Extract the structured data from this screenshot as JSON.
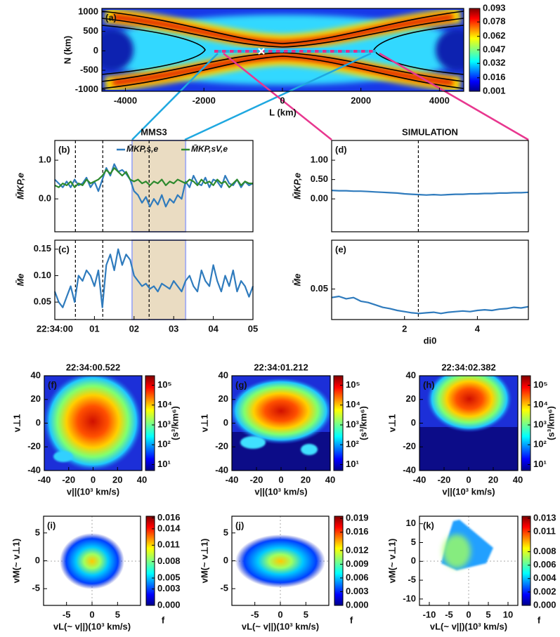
{
  "chart_data": [
    {
      "type": "heatmap",
      "annotation": "(a)",
      "xlabel": "L (km)",
      "ylabel": "N (km)",
      "xlim": [
        -4600,
        4620
      ],
      "ylim": [
        -1040,
        1090
      ],
      "xticks": [
        -4000,
        -2000,
        0,
        2000,
        4000
      ],
      "yticks": [
        1000,
        500,
        0,
        -500,
        -1000
      ],
      "colormap": "jet",
      "clim": [
        0.001,
        0.093
      ],
      "cticks": [
        0.093,
        0.078,
        0.062,
        0.047,
        0.032,
        0.016,
        0.001
      ]
    },
    {
      "type": "line",
      "title": "MMS3",
      "annotation": "(b)",
      "ylabel": "M̄KP,e",
      "x": [
        0,
        0.1,
        0.2,
        0.3,
        0.4,
        0.5,
        0.6,
        0.7,
        0.8,
        0.9,
        1,
        1.1,
        1.2,
        1.3,
        1.4,
        1.5,
        1.6,
        1.7,
        1.8,
        1.9,
        2,
        2.1,
        2.2,
        2.3,
        2.4,
        2.5,
        2.6,
        2.7,
        2.8,
        2.9,
        3,
        3.1,
        3.2,
        3.3,
        3.4,
        3.5,
        3.6,
        3.7,
        3.8,
        3.9,
        4,
        4.1,
        4.2,
        4.3,
        4.4,
        4.5,
        4.6,
        4.7,
        4.8,
        4.9,
        5
      ],
      "series": [
        {
          "name": "M̄KP,s,e",
          "color": "#2f7bbd",
          "values": [
            0.5,
            0.4,
            0.3,
            0.45,
            0.3,
            0.5,
            0.35,
            0.4,
            0.55,
            0.3,
            0.45,
            0.2,
            0.5,
            0.8,
            0.6,
            0.9,
            0.7,
            0.75,
            0.65,
            0.5,
            0.2,
            0.1,
            -0.1,
            0.05,
            -0.2,
            0.0,
            -0.15,
            0.1,
            -0.2,
            0.0,
            -0.1,
            0.1,
            0.0,
            0.45,
            0.3,
            0.6,
            0.4,
            0.35,
            0.55,
            0.3,
            0.5,
            0.45,
            0.3,
            0.6,
            0.4,
            0.35,
            0.5,
            0.3,
            0.45,
            0.35,
            0.4
          ]
        },
        {
          "name": "M̄KP,sV,e",
          "color": "#2e8a2e",
          "values": [
            0.35,
            0.3,
            0.4,
            0.35,
            0.45,
            0.3,
            0.4,
            0.35,
            0.5,
            0.4,
            0.45,
            0.5,
            0.6,
            0.75,
            0.65,
            0.8,
            0.7,
            0.6,
            0.7,
            0.5,
            0.45,
            0.5,
            0.4,
            0.45,
            0.35,
            0.45,
            0.4,
            0.5,
            0.35,
            0.45,
            0.4,
            0.5,
            0.45,
            0.4,
            0.5,
            0.45,
            0.35,
            0.5,
            0.4,
            0.45,
            0.35,
            0.5,
            0.4,
            0.45,
            0.3,
            0.4,
            0.5,
            0.35,
            0.45,
            0.4,
            0.4
          ]
        }
      ],
      "legend": "top",
      "xlim": [
        0,
        5
      ],
      "ylim": [
        -0.85,
        1.51
      ],
      "yticks": [
        {
          "value": 1,
          "label": "1.0"
        },
        {
          "value": 0,
          "label": "0.0"
        }
      ],
      "vlines": [
        0.52,
        1.21,
        2.38
      ],
      "span": [
        1.95,
        3.3
      ]
    },
    {
      "type": "line",
      "annotation": "(c)",
      "ylabel": "M̄e",
      "x": [
        0,
        0.1,
        0.2,
        0.3,
        0.4,
        0.5,
        0.6,
        0.7,
        0.8,
        0.9,
        1,
        1.1,
        1.2,
        1.3,
        1.4,
        1.5,
        1.6,
        1.7,
        1.8,
        1.9,
        2,
        2.1,
        2.2,
        2.3,
        2.4,
        2.5,
        2.6,
        2.7,
        2.8,
        2.9,
        3,
        3.1,
        3.2,
        3.3,
        3.4,
        3.5,
        3.6,
        3.7,
        3.8,
        3.9,
        4,
        4.1,
        4.2,
        4.3,
        4.4,
        4.5,
        4.6,
        4.7,
        4.8,
        4.9,
        5
      ],
      "series": [
        {
          "color": "#2f7bbd",
          "values": [
            0.07,
            0.05,
            0.04,
            0.06,
            0.08,
            0.05,
            0.1,
            0.09,
            0.11,
            0.1,
            0.08,
            0.11,
            0.04,
            0.12,
            0.14,
            0.11,
            0.15,
            0.12,
            0.14,
            0.13,
            0.1,
            0.09,
            0.08,
            0.085,
            0.075,
            0.08,
            0.07,
            0.085,
            0.08,
            0.075,
            0.09,
            0.08,
            0.07,
            0.09,
            0.1,
            0.08,
            0.07,
            0.11,
            0.09,
            0.08,
            0.12,
            0.09,
            0.07,
            0.1,
            0.08,
            0.11,
            0.07,
            0.09,
            0.08,
            0.06,
            0.08
          ]
        }
      ],
      "xlim": [
        0,
        5
      ],
      "ylim": [
        0.017,
        0.167
      ],
      "xticks": [
        {
          "value": 0,
          "label": "22:34:00"
        },
        {
          "value": 1,
          "label": "01"
        },
        {
          "value": 2,
          "label": "02"
        },
        {
          "value": 3,
          "label": "03"
        },
        {
          "value": 4,
          "label": "04"
        },
        {
          "value": 5,
          "label": "05"
        }
      ],
      "yticks": [
        0.15,
        {
          "value": 0.1,
          "label": "0.10"
        },
        0.05
      ],
      "vlines": [
        0.52,
        1.21,
        2.38
      ],
      "span": [
        1.95,
        3.3
      ]
    },
    {
      "type": "line",
      "title": "SIMULATION",
      "annotation": "(d)",
      "ylabel": "M̄KP,e",
      "x": [
        0,
        0.2,
        0.4,
        0.6,
        0.8,
        1,
        1.2,
        1.4,
        1.6,
        1.8,
        2,
        2.2,
        2.4,
        2.6,
        2.8,
        3,
        3.2,
        3.4,
        3.6,
        3.8,
        4,
        4.2,
        4.4,
        4.6,
        4.8,
        5,
        5.2,
        5.4
      ],
      "series": [
        {
          "color": "#2f7bbd",
          "values": [
            0.22,
            0.21,
            0.21,
            0.2,
            0.2,
            0.19,
            0.18,
            0.17,
            0.16,
            0.15,
            0.13,
            0.12,
            0.11,
            0.1,
            0.11,
            0.1,
            0.11,
            0.12,
            0.12,
            0.13,
            0.13,
            0.14,
            0.14,
            0.15,
            0.15,
            0.16,
            0.16,
            0.17
          ]
        }
      ],
      "xlim": [
        0,
        5.4
      ],
      "ylim": [
        -0.85,
        1.51
      ],
      "yticks": [
        {
          "value": 1,
          "label": "1.00"
        },
        {
          "value": 0.5,
          "label": "0.50"
        },
        {
          "value": 0,
          "label": "0.00"
        }
      ],
      "vlines": [
        2.38
      ]
    },
    {
      "type": "line",
      "annotation": "(e)",
      "ylabel": "M̄e",
      "xlabel": "di0",
      "x": [
        0,
        0.2,
        0.4,
        0.6,
        0.8,
        1,
        1.2,
        1.4,
        1.6,
        1.8,
        2,
        2.2,
        2.4,
        2.6,
        2.8,
        3,
        3.2,
        3.4,
        3.6,
        3.8,
        4,
        4.2,
        4.4,
        4.6,
        4.8,
        5,
        5.2,
        5.4
      ],
      "series": [
        {
          "color": "#2f7bbd",
          "values": [
            0.036,
            0.038,
            0.034,
            0.036,
            0.03,
            0.028,
            0.024,
            0.02,
            0.018,
            0.015,
            0.013,
            0.011,
            0.01,
            0.011,
            0.012,
            0.01,
            0.012,
            0.013,
            0.014,
            0.013,
            0.015,
            0.016,
            0.015,
            0.017,
            0.018,
            0.02,
            0.019,
            0.021
          ]
        }
      ],
      "xlim": [
        0,
        5.4
      ],
      "ylim": [
        0,
        0.13
      ],
      "xticks": [
        2,
        4
      ],
      "yticks": [
        0.05
      ],
      "vlines": [
        2.38
      ]
    },
    {
      "type": "heatmap",
      "title": "22:34:00.522",
      "annotation": "(f)",
      "xlabel": "v||(10³ km/s)",
      "ylabel": "v⊥1",
      "xlim": [
        -40,
        40
      ],
      "ylim": [
        -40,
        40
      ],
      "xticks": [
        -40,
        -20,
        0,
        20,
        40
      ],
      "yticks": [
        40,
        20,
        0,
        -20,
        -40
      ],
      "colormap": "jet",
      "clog": true,
      "clim": [
        5,
        300000
      ],
      "colorbar_label": "(s³/km⁶)",
      "cticks": [
        {
          "value": 100000,
          "label": "10⁵"
        },
        {
          "value": 10000,
          "label": "10⁴"
        },
        {
          "value": 1000,
          "label": "10³"
        },
        {
          "value": 100,
          "label": "10²"
        },
        {
          "value": 10,
          "label": "10¹"
        }
      ]
    },
    {
      "type": "heatmap",
      "title": "22:34:01.212",
      "annotation": "(g)",
      "xlabel": "v||(10³ km/s)",
      "ylabel": "v⊥1",
      "xlim": [
        -40,
        40
      ],
      "ylim": [
        -40,
        40
      ],
      "xticks": [
        -40,
        -20,
        0,
        20,
        40
      ],
      "yticks": [
        40,
        20,
        0,
        -20,
        -40
      ],
      "colormap": "jet",
      "clog": true,
      "clim": [
        5,
        300000
      ],
      "colorbar_label": "(s³/km⁶)",
      "cticks": [
        {
          "value": 100000,
          "label": "10⁵"
        },
        {
          "value": 10000,
          "label": "10⁴"
        },
        {
          "value": 1000,
          "label": "10³"
        },
        {
          "value": 100,
          "label": "10²"
        },
        {
          "value": 10,
          "label": "10¹"
        }
      ]
    },
    {
      "type": "heatmap",
      "title": "22:34:02.382",
      "annotation": "(h)",
      "xlabel": "v||(10³ km/s)",
      "ylabel": "v⊥1",
      "xlim": [
        -40,
        40
      ],
      "ylim": [
        -40,
        40
      ],
      "xticks": [
        -40,
        -20,
        0,
        20,
        40
      ],
      "yticks": [
        40,
        20,
        0,
        -20,
        -40
      ],
      "colormap": "jet",
      "clog": true,
      "clim": [
        5,
        300000
      ],
      "colorbar_label": "(s³/km⁶)",
      "cticks": [
        {
          "value": 100000,
          "label": "10⁵"
        },
        {
          "value": 10000,
          "label": "10⁴"
        },
        {
          "value": 1000,
          "label": "10³"
        },
        {
          "value": 100,
          "label": "10²"
        },
        {
          "value": 10,
          "label": "10¹"
        }
      ]
    },
    {
      "type": "heatmap",
      "annotation": "(i)",
      "xlabel": "vL(~ v||)(10³ km/s)",
      "ylabel": "vM(~ v⊥1)",
      "xlim": [
        -9.5,
        9.5
      ],
      "ylim": [
        -8,
        8
      ],
      "xticks": [
        -5,
        0,
        5
      ],
      "yticks": [
        5,
        0,
        -5
      ],
      "colormap": "jet",
      "clim": [
        0,
        0.0163
      ],
      "colorbar_label": "f",
      "cticks": [
        0.016,
        0.014,
        0.011,
        0.008,
        0.005,
        0.003,
        {
          "value": 0,
          "label": "0.000"
        }
      ]
    },
    {
      "type": "heatmap",
      "annotation": "(j)",
      "xlabel": "vL(~ v||)(10³ km/s)",
      "ylabel": "vM(~ v⊥1)",
      "xlim": [
        -9.5,
        9.5
      ],
      "ylim": [
        -8,
        8
      ],
      "xticks": [
        -5,
        0,
        5
      ],
      "yticks": [
        5,
        0,
        -5
      ],
      "colormap": "jet",
      "clim": [
        0,
        0.0195
      ],
      "colorbar_label": "f",
      "cticks": [
        0.019,
        0.016,
        0.012,
        0.009,
        0.006,
        0.003,
        {
          "value": 0,
          "label": "0.000"
        }
      ]
    },
    {
      "type": "heatmap",
      "annotation": "(k)",
      "xlabel": "vL(~ v||)(10³ km/s)",
      "ylabel": "vM(~ v⊥1)",
      "xlim": [
        -12.5,
        12.5
      ],
      "ylim": [
        -11.7,
        12
      ],
      "xticks": [
        -10,
        -5,
        0,
        5,
        10
      ],
      "yticks": [
        10,
        5,
        0,
        -5,
        -10
      ],
      "colormap": "jet",
      "clim": [
        0,
        0.0133
      ],
      "colorbar_label": "f",
      "cticks": [
        0.013,
        0.011,
        0.008,
        0.006,
        0.004,
        0.002,
        {
          "value": 0,
          "label": "0.000"
        }
      ]
    }
  ]
}
